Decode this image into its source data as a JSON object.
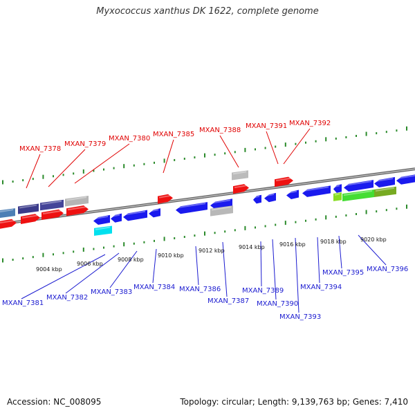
{
  "title": "Myxococcus xanthus DK 1622, complete genome",
  "footer": {
    "accession": "Accession: NC_008095",
    "topology": "Topology: circular; Length: 9,139,763 bp; Genes: 7,410"
  },
  "colors": {
    "forward_label": "#e00000",
    "reverse_label": "#1a1ad0",
    "forward_gene": "#ee1111",
    "reverse_gene": "#1a1aee",
    "backbone": "#888888",
    "tick": "#2a8a2a"
  },
  "ruler": {
    "unit": "kbp",
    "ticks": [
      "9004 kbp",
      "9006 kbp",
      "9008 kbp",
      "9010 kbp",
      "9012 kbp",
      "9014 kbp",
      "9016 kbp",
      "9018 kbp",
      "9020 kbp"
    ]
  },
  "forward_labels": [
    "MXAN_7378",
    "MXAN_7379",
    "MXAN_7380",
    "MXAN_7385",
    "MXAN_7388",
    "MXAN_7391",
    "MXAN_7392"
  ],
  "reverse_labels": [
    "MXAN_7381",
    "MXAN_7382",
    "MXAN_7383",
    "MXAN_7384",
    "MXAN_7386",
    "MXAN_7387",
    "MXAN_7389",
    "MXAN_7390",
    "MXAN_7393",
    "MXAN_7394",
    "MXAN_7395",
    "MXAN_7396"
  ]
}
